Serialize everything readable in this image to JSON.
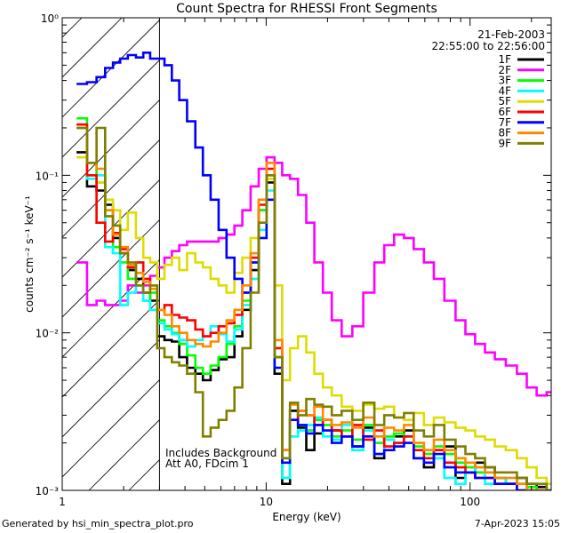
{
  "chart_data": {
    "type": "line",
    "title": "Count Spectra for RHESSI Front Segments",
    "xlabel": "Energy (keV)",
    "ylabel": "counts cm⁻² s⁻¹ keV⁻¹",
    "xscale": "log",
    "yscale": "log",
    "xlim": [
      1,
      250
    ],
    "ylim": [
      0.001,
      1
    ],
    "x_ticks": [
      {
        "value": 1,
        "label": "1"
      },
      {
        "value": 10,
        "label": "10"
      },
      {
        "value": 100,
        "label": "100"
      }
    ],
    "y_ticks": [
      {
        "value": 1,
        "label": "10⁰"
      },
      {
        "value": 0.1,
        "label": "10⁻¹"
      },
      {
        "value": 0.01,
        "label": "10⁻²"
      },
      {
        "value": 0.001,
        "label": "10⁻³"
      }
    ],
    "date": "21-Feb-2003",
    "time_range": "22:55:00 to 22:56:00",
    "background_region_max_keV": 3,
    "annotations": [
      "Includes Background",
      "Att A0, FDcim 1"
    ],
    "series": [
      {
        "name": "1F",
        "color": "#000000",
        "x": [
          1.25,
          1.4,
          1.55,
          1.7,
          1.85,
          2.0,
          2.2,
          2.4,
          2.6,
          2.8,
          3.05,
          3.3,
          3.6,
          3.9,
          4.3,
          4.7,
          5.1,
          5.6,
          6.1,
          6.7,
          7.3,
          8.0,
          8.8,
          9.6,
          10.5,
          11.5,
          12.5,
          13.7,
          15,
          16.5,
          18,
          20,
          22,
          25,
          28,
          32,
          36,
          40,
          45,
          50,
          56,
          63,
          70,
          80,
          90,
          100,
          112,
          125,
          140,
          160,
          180,
          200,
          225,
          250
        ],
        "y": [
          0.14,
          0.085,
          0.08,
          0.065,
          0.04,
          0.032,
          0.025,
          0.022,
          0.018,
          0.016,
          0.0095,
          0.009,
          0.0088,
          0.007,
          0.006,
          0.0055,
          0.005,
          0.0058,
          0.0068,
          0.007,
          0.0095,
          0.014,
          0.025,
          0.06,
          0.09,
          0.0055,
          0.0011,
          0.0032,
          0.0025,
          0.0018,
          0.0023,
          0.0028,
          0.0024,
          0.0022,
          0.0019,
          0.0025,
          0.0016,
          0.0022,
          0.0022,
          0.0024,
          0.0016,
          0.0014,
          0.0018,
          0.0019,
          0.0012,
          0.0013,
          0.0015,
          0.0014,
          0.0012,
          0.0011,
          0.0012,
          0.0011,
          0.00105,
          0.001
        ]
      },
      {
        "name": "2F",
        "color": "#ff00ff",
        "x": [
          1.25,
          1.4,
          1.55,
          1.7,
          1.85,
          2.0,
          2.2,
          2.4,
          2.6,
          2.8,
          3.05,
          3.3,
          3.6,
          3.9,
          4.3,
          4.7,
          5.1,
          5.6,
          6.1,
          6.7,
          7.3,
          8.0,
          8.8,
          9.6,
          10.5,
          11.5,
          12.5,
          13.7,
          15,
          16.5,
          18,
          20,
          22,
          25,
          28,
          32,
          36,
          40,
          45,
          50,
          56,
          63,
          70,
          80,
          90,
          100,
          112,
          125,
          140,
          160,
          180,
          200,
          225,
          250
        ],
        "y": [
          0.028,
          0.015,
          0.016,
          0.015,
          0.015,
          0.016,
          0.02,
          0.018,
          0.02,
          0.023,
          0.026,
          0.03,
          0.033,
          0.036,
          0.038,
          0.038,
          0.038,
          0.038,
          0.04,
          0.042,
          0.048,
          0.06,
          0.085,
          0.11,
          0.13,
          0.12,
          0.1,
          0.095,
          0.075,
          0.05,
          0.028,
          0.018,
          0.012,
          0.0095,
          0.011,
          0.018,
          0.028,
          0.036,
          0.042,
          0.04,
          0.034,
          0.028,
          0.022,
          0.016,
          0.012,
          0.0098,
          0.0085,
          0.0075,
          0.0068,
          0.0062,
          0.0055,
          0.0045,
          0.004,
          0.0042
        ]
      },
      {
        "name": "3F",
        "color": "#00ff00",
        "x": [
          1.25,
          1.4,
          1.55,
          1.7,
          1.85,
          2.0,
          2.2,
          2.4,
          2.6,
          2.8,
          3.05,
          3.3,
          3.6,
          3.9,
          4.3,
          4.7,
          5.1,
          5.6,
          6.1,
          6.7,
          7.3,
          8.0,
          8.8,
          9.6,
          10.5,
          11.5,
          12.5,
          13.7,
          15,
          16.5,
          18,
          20,
          22,
          25,
          28,
          32,
          36,
          40,
          45,
          50,
          56,
          63,
          70,
          80,
          90,
          100,
          112,
          125,
          140,
          160,
          180,
          200,
          225,
          250
        ],
        "y": [
          0.23,
          0.12,
          0.09,
          0.06,
          0.035,
          0.028,
          0.022,
          0.02,
          0.016,
          0.018,
          0.012,
          0.011,
          0.01,
          0.0085,
          0.0072,
          0.006,
          0.0055,
          0.0062,
          0.007,
          0.0085,
          0.011,
          0.016,
          0.028,
          0.06,
          0.1,
          0.007,
          0.0012,
          0.0028,
          0.0026,
          0.0024,
          0.0028,
          0.0026,
          0.0022,
          0.0024,
          0.0021,
          0.0026,
          0.002,
          0.0022,
          0.0023,
          0.0022,
          0.0019,
          0.0017,
          0.0019,
          0.0017,
          0.0015,
          0.0014,
          0.0013,
          0.0013,
          0.0012,
          0.0011,
          0.0011,
          0.00105,
          0.001,
          0.001
        ]
      },
      {
        "name": "4F",
        "color": "#00ffff",
        "x": [
          1.25,
          1.4,
          1.55,
          1.7,
          1.85,
          2.0,
          2.2,
          2.4,
          2.6,
          2.8,
          3.05,
          3.3,
          3.6,
          3.9,
          4.3,
          4.7,
          5.1,
          5.6,
          6.1,
          6.7,
          7.3,
          8.0,
          8.8,
          9.6,
          10.5,
          11.5,
          12.5,
          13.7,
          15,
          16.5,
          18,
          20,
          22,
          25,
          28,
          32,
          36,
          40,
          45,
          50,
          56,
          63,
          70,
          80,
          90,
          100,
          112,
          125,
          140,
          160,
          180,
          200,
          225,
          250
        ],
        "y": [
          0.2,
          0.095,
          0.1,
          0.035,
          0.032,
          0.015,
          0.018,
          0.02,
          0.016,
          0.014,
          0.0115,
          0.0105,
          0.0098,
          0.009,
          0.0082,
          0.009,
          0.0095,
          0.011,
          0.0098,
          0.0088,
          0.0105,
          0.015,
          0.022,
          0.045,
          0.08,
          0.006,
          0.0012,
          0.0022,
          0.0024,
          0.0026,
          0.0029,
          0.0022,
          0.0021,
          0.0026,
          0.0018,
          0.0024,
          0.0017,
          0.0021,
          0.002,
          0.0022,
          0.0016,
          0.0018,
          0.0016,
          0.0012,
          0.0011,
          0.0013,
          0.0014,
          0.0011,
          0.0011,
          0.0012,
          0.0011,
          0.001,
          0.001,
          0.001
        ]
      },
      {
        "name": "5F",
        "color": "#dddd00",
        "x": [
          1.25,
          1.4,
          1.55,
          1.7,
          1.85,
          2.0,
          2.2,
          2.4,
          2.6,
          2.8,
          3.05,
          3.3,
          3.6,
          3.9,
          4.3,
          4.7,
          5.1,
          5.6,
          6.1,
          6.7,
          7.3,
          8.0,
          8.8,
          9.6,
          10.5,
          11.5,
          12.5,
          13.7,
          15,
          16.5,
          18,
          20,
          22,
          25,
          28,
          32,
          36,
          40,
          45,
          50,
          56,
          63,
          70,
          80,
          90,
          100,
          112,
          125,
          140,
          160,
          180,
          200,
          225,
          250
        ],
        "y": [
          0.13,
          0.1,
          0.09,
          0.07,
          0.06,
          0.045,
          0.058,
          0.04,
          0.03,
          0.028,
          0.022,
          0.027,
          0.03,
          0.025,
          0.032,
          0.028,
          0.026,
          0.022,
          0.02,
          0.018,
          0.024,
          0.03,
          0.04,
          0.05,
          0.095,
          0.02,
          0.005,
          0.008,
          0.0095,
          0.0075,
          0.0055,
          0.0045,
          0.004,
          0.0034,
          0.0032,
          0.0035,
          0.0033,
          0.0034,
          0.0029,
          0.0028,
          0.0031,
          0.0026,
          0.0029,
          0.0027,
          0.0025,
          0.0024,
          0.0022,
          0.0021,
          0.0019,
          0.0018,
          0.0016,
          0.0014,
          0.0012,
          0.0011
        ]
      },
      {
        "name": "6F",
        "color": "#ff0000",
        "x": [
          1.25,
          1.4,
          1.55,
          1.7,
          1.85,
          2.0,
          2.2,
          2.4,
          2.6,
          2.8,
          3.05,
          3.3,
          3.6,
          3.9,
          4.3,
          4.7,
          5.1,
          5.6,
          6.1,
          6.7,
          7.3,
          8.0,
          8.8,
          9.6,
          10.5,
          11.5,
          12.5,
          13.7,
          15,
          16.5,
          18,
          20,
          22,
          25,
          28,
          32,
          36,
          40,
          45,
          50,
          56,
          63,
          70,
          80,
          90,
          100,
          112,
          125,
          140,
          160,
          180,
          200,
          225,
          250
        ],
        "y": [
          0.21,
          0.1,
          0.05,
          0.038,
          0.043,
          0.034,
          0.026,
          0.028,
          0.022,
          0.02,
          0.014,
          0.015,
          0.013,
          0.0125,
          0.012,
          0.0105,
          0.0095,
          0.01,
          0.011,
          0.0115,
          0.013,
          0.018,
          0.03,
          0.065,
          0.11,
          0.008,
          0.0018,
          0.0028,
          0.0032,
          0.003,
          0.0026,
          0.0028,
          0.0024,
          0.0022,
          0.0026,
          0.0021,
          0.0024,
          0.0019,
          0.002,
          0.0022,
          0.0018,
          0.0016,
          0.0018,
          0.0015,
          0.0014,
          0.0013,
          0.0012,
          0.0012,
          0.0011,
          0.0011,
          0.001,
          0.001,
          0.001,
          0.001
        ]
      },
      {
        "name": "7F",
        "color": "#0000ff",
        "x": [
          1.25,
          1.4,
          1.55,
          1.7,
          1.85,
          2.0,
          2.2,
          2.4,
          2.6,
          2.8,
          3.05,
          3.3,
          3.6,
          3.9,
          4.3,
          4.7,
          5.1,
          5.6,
          6.1,
          6.7,
          7.3,
          8.0,
          8.8,
          9.6,
          10.5,
          11.5,
          12.5,
          13.7,
          15,
          16.5,
          18,
          20,
          22,
          25,
          28,
          32,
          36,
          40,
          45,
          50,
          56,
          63,
          70,
          80,
          90,
          100,
          112,
          125,
          140,
          160,
          180,
          200,
          225,
          250
        ],
        "y": [
          0.38,
          0.39,
          0.42,
          0.48,
          0.52,
          0.55,
          0.58,
          0.56,
          0.6,
          0.55,
          0.55,
          0.5,
          0.4,
          0.3,
          0.22,
          0.15,
          0.1,
          0.07,
          0.045,
          0.03,
          0.022,
          0.018,
          0.028,
          0.04,
          0.07,
          0.006,
          0.0015,
          0.0028,
          0.0026,
          0.0023,
          0.0026,
          0.0024,
          0.002,
          0.0022,
          0.0019,
          0.0022,
          0.0017,
          0.0018,
          0.0019,
          0.002,
          0.0016,
          0.0015,
          0.0017,
          0.0014,
          0.0013,
          0.0013,
          0.0012,
          0.0012,
          0.0011,
          0.0011,
          0.001,
          0.001,
          0.001,
          0.001
        ]
      },
      {
        "name": "8F",
        "color": "#ff8800",
        "x": [
          1.25,
          1.4,
          1.55,
          1.7,
          1.85,
          2.0,
          2.2,
          2.4,
          2.6,
          2.8,
          3.05,
          3.3,
          3.6,
          3.9,
          4.3,
          4.7,
          5.1,
          5.6,
          6.1,
          6.7,
          7.3,
          8.0,
          8.8,
          9.6,
          10.5,
          11.5,
          12.5,
          13.7,
          15,
          16.5,
          18,
          20,
          22,
          25,
          28,
          32,
          36,
          40,
          45,
          50,
          56,
          63,
          70,
          80,
          90,
          100,
          112,
          125,
          140,
          160,
          180,
          200,
          225,
          250
        ],
        "y": [
          0.2,
          0.12,
          0.11,
          0.06,
          0.042,
          0.035,
          0.027,
          0.024,
          0.021,
          0.019,
          0.014,
          0.013,
          0.011,
          0.01,
          0.009,
          0.0085,
          0.0082,
          0.0088,
          0.01,
          0.012,
          0.014,
          0.02,
          0.032,
          0.07,
          0.12,
          0.009,
          0.0018,
          0.0035,
          0.0032,
          0.003,
          0.0034,
          0.0028,
          0.0026,
          0.0027,
          0.0025,
          0.0029,
          0.0022,
          0.0025,
          0.0024,
          0.0026,
          0.002,
          0.0018,
          0.0021,
          0.0018,
          0.0016,
          0.0015,
          0.0014,
          0.0013,
          0.0012,
          0.0012,
          0.0011,
          0.001,
          0.001,
          0.001
        ]
      },
      {
        "name": "9F",
        "color": "#808000",
        "x": [
          1.25,
          1.4,
          1.55,
          1.7,
          1.85,
          2.0,
          2.2,
          2.4,
          2.6,
          2.8,
          3.05,
          3.3,
          3.6,
          3.9,
          4.3,
          4.7,
          5.1,
          5.6,
          6.1,
          6.7,
          7.3,
          8.0,
          8.8,
          9.6,
          10.5,
          11.5,
          12.5,
          13.7,
          15,
          16.5,
          18,
          20,
          22,
          25,
          28,
          32,
          36,
          40,
          45,
          50,
          56,
          63,
          70,
          80,
          90,
          100,
          112,
          125,
          140,
          160,
          180,
          200,
          225,
          250
        ],
        "y": [
          0.2,
          0.12,
          0.2,
          0.055,
          0.048,
          0.032,
          0.028,
          0.02,
          0.018,
          0.02,
          0.008,
          0.007,
          0.0065,
          0.0062,
          0.0055,
          0.0042,
          0.0022,
          0.0025,
          0.0028,
          0.0032,
          0.0045,
          0.008,
          0.018,
          0.05,
          0.1,
          0.007,
          0.0016,
          0.0036,
          0.003,
          0.0038,
          0.0035,
          0.0034,
          0.003,
          0.0032,
          0.0028,
          0.0036,
          0.0026,
          0.003,
          0.0029,
          0.0031,
          0.0024,
          0.0022,
          0.0026,
          0.0021,
          0.0019,
          0.0017,
          0.0016,
          0.0014,
          0.0013,
          0.0013,
          0.0012,
          0.0011,
          0.0011,
          0.001
        ]
      }
    ]
  },
  "footer": {
    "generated_by": "Generated by hsi_min_spectra_plot.pro",
    "timestamp": "7-Apr-2023 15:05"
  }
}
